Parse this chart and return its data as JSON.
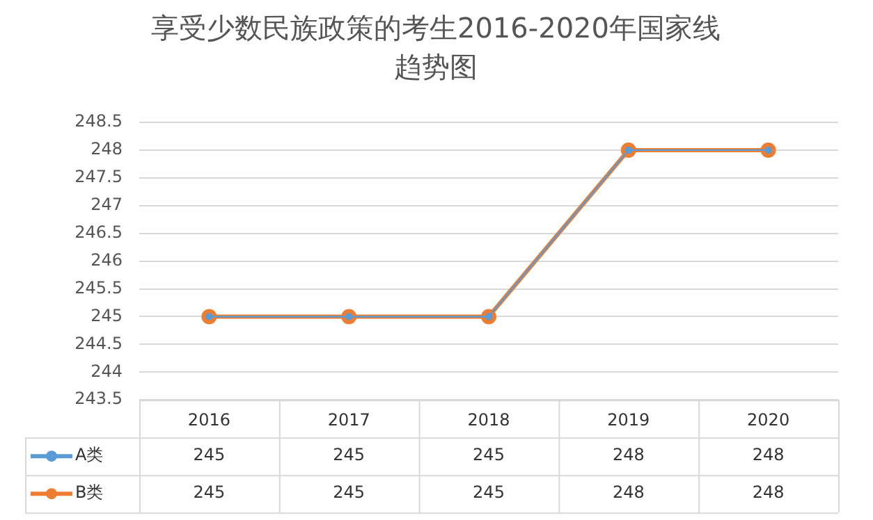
{
  "chart_data": {
    "type": "line",
    "title": "享受少数民族政策的考生2016-2020年国家线趋势图",
    "categories": [
      "2016",
      "2017",
      "2018",
      "2019",
      "2020"
    ],
    "series": [
      {
        "name": "A类",
        "color": "#5b9bd5",
        "values": [
          245,
          245,
          245,
          248,
          248
        ]
      },
      {
        "name": "B类",
        "color": "#ed7d31",
        "values": [
          245,
          245,
          245,
          248,
          248
        ]
      }
    ],
    "ylim": [
      243.5,
      248.5
    ],
    "yticks": [
      243.5,
      244,
      244.5,
      245,
      245.5,
      246,
      246.5,
      247,
      247.5,
      248,
      248.5
    ],
    "grid": "y",
    "legend": "bottom",
    "marker": "circle",
    "line_style": "solid",
    "data_labels": true
  }
}
